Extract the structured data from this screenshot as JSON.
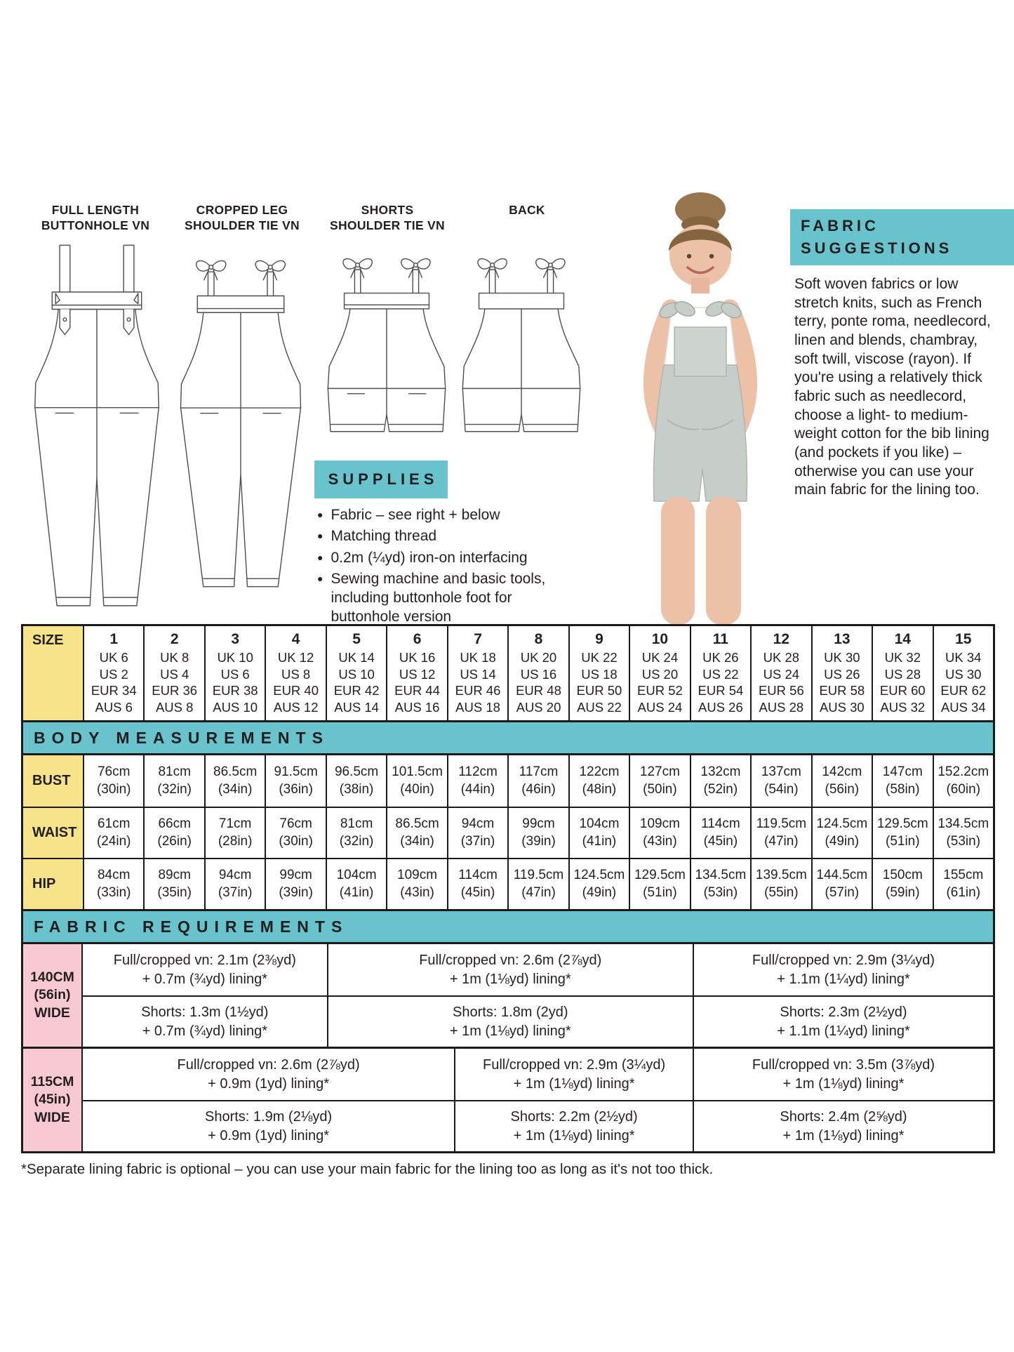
{
  "colors": {
    "teal": "#68c3cd",
    "yellow": "#f6e38a",
    "pink": "#f9c9d3",
    "ink": "#231f20",
    "line": "#1a1a1a"
  },
  "drawings": {
    "labels": [
      [
        "FULL LENGTH",
        "BUTTONHOLE VN"
      ],
      [
        "CROPPED LEG",
        "SHOULDER TIE VN"
      ],
      [
        "SHORTS",
        "SHOULDER TIE VN"
      ],
      [
        "BACK",
        ""
      ]
    ]
  },
  "fabric_suggestions": {
    "title_lines": [
      "FABRIC",
      "SUGGESTIONS"
    ],
    "body": "Soft woven fabrics or low stretch knits, such as French terry, ponte roma, needlecord, linen and blends, chambray, soft twill, viscose (rayon). If you're using a relatively thick fabric such as needlecord, choose a light- to medium-weight cotton for the bib lining (and pockets if you like) – otherwise you can use your main fabric for the lining too."
  },
  "supplies": {
    "title": "SUPPLIES",
    "items": [
      "Fabric – see right + below",
      "Matching thread",
      "0.2m (¼yd) iron-on interfacing",
      "Sewing machine and basic tools, including buttonhole foot for buttonhole version"
    ]
  },
  "size_table": {
    "size_label": "SIZE",
    "sizes": [
      {
        "num": "1",
        "uk": "UK 6",
        "us": "US 2",
        "eur": "EUR 34",
        "aus": "AUS 6"
      },
      {
        "num": "2",
        "uk": "UK 8",
        "us": "US 4",
        "eur": "EUR 36",
        "aus": "AUS 8"
      },
      {
        "num": "3",
        "uk": "UK 10",
        "us": "US 6",
        "eur": "EUR 38",
        "aus": "AUS 10"
      },
      {
        "num": "4",
        "uk": "UK 12",
        "us": "US 8",
        "eur": "EUR 40",
        "aus": "AUS 12"
      },
      {
        "num": "5",
        "uk": "UK 14",
        "us": "US 10",
        "eur": "EUR 42",
        "aus": "AUS 14"
      },
      {
        "num": "6",
        "uk": "UK 16",
        "us": "US 12",
        "eur": "EUR 44",
        "aus": "AUS 16"
      },
      {
        "num": "7",
        "uk": "UK 18",
        "us": "US 14",
        "eur": "EUR 46",
        "aus": "AUS 18"
      },
      {
        "num": "8",
        "uk": "UK 20",
        "us": "US 16",
        "eur": "EUR 48",
        "aus": "AUS 20"
      },
      {
        "num": "9",
        "uk": "UK 22",
        "us": "US 18",
        "eur": "EUR 50",
        "aus": "AUS 22"
      },
      {
        "num": "10",
        "uk": "UK 24",
        "us": "US 20",
        "eur": "EUR 52",
        "aus": "AUS 24"
      },
      {
        "num": "11",
        "uk": "UK 26",
        "us": "US 22",
        "eur": "EUR 54",
        "aus": "AUS 26"
      },
      {
        "num": "12",
        "uk": "UK 28",
        "us": "US 24",
        "eur": "EUR 56",
        "aus": "AUS 28"
      },
      {
        "num": "13",
        "uk": "UK 30",
        "us": "US 26",
        "eur": "EUR 58",
        "aus": "AUS 30"
      },
      {
        "num": "14",
        "uk": "UK 32",
        "us": "US 28",
        "eur": "EUR 60",
        "aus": "AUS 32"
      },
      {
        "num": "15",
        "uk": "UK 34",
        "us": "US 30",
        "eur": "EUR 62",
        "aus": "AUS 34"
      }
    ]
  },
  "body_measurements": {
    "title": "BODY MEASUREMENTS",
    "rows": [
      {
        "label": "BUST",
        "values": [
          [
            "76cm",
            "(30in)"
          ],
          [
            "81cm",
            "(32in)"
          ],
          [
            "86.5cm",
            "(34in)"
          ],
          [
            "91.5cm",
            "(36in)"
          ],
          [
            "96.5cm",
            "(38in)"
          ],
          [
            "101.5cm",
            "(40in)"
          ],
          [
            "112cm",
            "(44in)"
          ],
          [
            "117cm",
            "(46in)"
          ],
          [
            "122cm",
            "(48in)"
          ],
          [
            "127cm",
            "(50in)"
          ],
          [
            "132cm",
            "(52in)"
          ],
          [
            "137cm",
            "(54in)"
          ],
          [
            "142cm",
            "(56in)"
          ],
          [
            "147cm",
            "(58in)"
          ],
          [
            "152.2cm",
            "(60in)"
          ]
        ]
      },
      {
        "label": "WAIST",
        "values": [
          [
            "61cm",
            "(24in)"
          ],
          [
            "66cm",
            "(26in)"
          ],
          [
            "71cm",
            "(28in)"
          ],
          [
            "76cm",
            "(30in)"
          ],
          [
            "81cm",
            "(32in)"
          ],
          [
            "86.5cm",
            "(34in)"
          ],
          [
            "94cm",
            "(37in)"
          ],
          [
            "99cm",
            "(39in)"
          ],
          [
            "104cm",
            "(41in)"
          ],
          [
            "109cm",
            "(43in)"
          ],
          [
            "114cm",
            "(45in)"
          ],
          [
            "119.5cm",
            "(47in)"
          ],
          [
            "124.5cm",
            "(49in)"
          ],
          [
            "129.5cm",
            "(51in)"
          ],
          [
            "134.5cm",
            "(53in)"
          ]
        ]
      },
      {
        "label": "HIP",
        "values": [
          [
            "84cm",
            "(33in)"
          ],
          [
            "89cm",
            "(35in)"
          ],
          [
            "94cm",
            "(37in)"
          ],
          [
            "99cm",
            "(39in)"
          ],
          [
            "104cm",
            "(41in)"
          ],
          [
            "109cm",
            "(43in)"
          ],
          [
            "114cm",
            "(45in)"
          ],
          [
            "119.5cm",
            "(47in)"
          ],
          [
            "124.5cm",
            "(49in)"
          ],
          [
            "129.5cm",
            "(51in)"
          ],
          [
            "134.5cm",
            "(53in)"
          ],
          [
            "139.5cm",
            "(55in)"
          ],
          [
            "144.5cm",
            "(57in)"
          ],
          [
            "150cm",
            "(59in)"
          ],
          [
            "155cm",
            "(61in)"
          ]
        ]
      }
    ]
  },
  "fabric_requirements": {
    "title": "FABRIC REQUIREMENTS",
    "blocks": [
      {
        "label_lines": [
          "140CM",
          "(56in)",
          "WIDE"
        ],
        "col_percents": [
          26.8,
          40.2,
          33.0
        ],
        "rows": [
          [
            [
              "Full/cropped vn: 2.1m (2⅜yd)",
              "+ 0.7m (¾yd) lining*"
            ],
            [
              "Full/cropped vn: 2.6m (2⅞yd)",
              "+ 1m (1⅛yd) lining*"
            ],
            [
              "Full/cropped vn: 2.9m (3¼yd)",
              "+ 1.1m (1¼yd) lining*"
            ]
          ],
          [
            [
              "Shorts: 1.3m (1½yd)",
              "+ 0.7m (¾yd) lining*"
            ],
            [
              "Shorts: 1.8m (2yd)",
              "+ 1m (1⅛yd) lining*"
            ],
            [
              "Shorts: 2.3m (2½yd)",
              "+ 1.1m (1¼yd) lining*"
            ]
          ]
        ]
      },
      {
        "label_lines": [
          "115CM",
          "(45in)",
          "WIDE"
        ],
        "col_percents": [
          40.8,
          26.2,
          33.0
        ],
        "rows": [
          [
            [
              "Full/cropped vn: 2.6m (2⅞yd)",
              "+ 0.9m (1yd) lining*"
            ],
            [
              "Full/cropped vn: 2.9m (3¼yd)",
              "+ 1m (1⅛yd) lining*"
            ],
            [
              "Full/cropped vn: 3.5m (3⅞yd)",
              "+ 1m (1⅛yd) lining*"
            ]
          ],
          [
            [
              "Shorts: 1.9m (2⅛yd)",
              "+ 0.9m (1yd) lining*"
            ],
            [
              "Shorts: 2.2m (2½yd)",
              "+ 1m (1⅛yd) lining*"
            ],
            [
              "Shorts: 2.4m (2⅝yd)",
              "+ 1m (1⅛yd) lining*"
            ]
          ]
        ]
      }
    ],
    "footnote": "*Separate lining fabric is optional – you can use your main fabric for the lining too as long as it's not too thick."
  }
}
